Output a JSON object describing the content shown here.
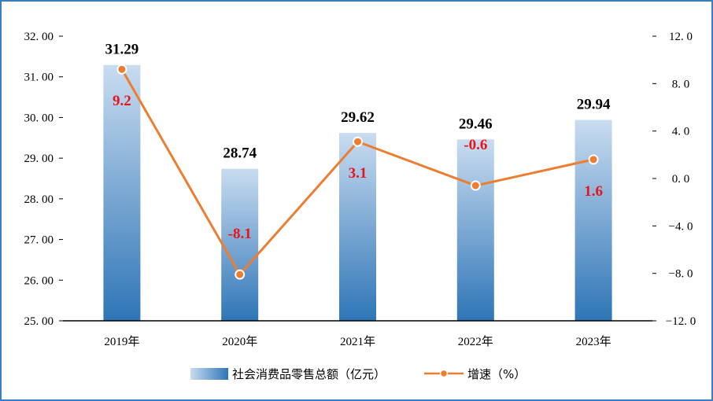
{
  "chart_data": {
    "type": "bar",
    "categories": [
      "2019年",
      "2020年",
      "2021年",
      "2022年",
      "2023年"
    ],
    "series": [
      {
        "name": "社会消费品零售总额（亿元）",
        "type": "bar",
        "axis": "left",
        "values": [
          31.29,
          28.74,
          29.62,
          29.46,
          29.94
        ],
        "labels": [
          "31.29",
          "28.74",
          "29.62",
          "29.46",
          "29.94"
        ],
        "color": "#2e75b6"
      },
      {
        "name": "增速（%）",
        "type": "line",
        "axis": "right",
        "values": [
          9.2,
          -8.1,
          3.1,
          -0.6,
          1.6
        ],
        "labels": [
          "9.2",
          "-8.1",
          "3.1",
          "-0.6",
          "1.6"
        ],
        "color": "#ed7d31"
      }
    ],
    "y_left": {
      "ylim": [
        25,
        32
      ],
      "ticks": [
        "25. 00",
        "26. 00",
        "27. 00",
        "28. 00",
        "29. 00",
        "30. 00",
        "31. 00",
        "32. 00"
      ]
    },
    "y_right": {
      "ylim": [
        -12,
        12
      ],
      "ticks": [
        "−12. 0",
        "−8. 0",
        "−4. 0",
        "0. 0",
        "4. 0",
        "8. 0",
        "12. 0"
      ]
    },
    "grid": false,
    "legend_position": "bottom"
  },
  "colors": {
    "bar_light": "#c9dcf0",
    "bar_dark": "#2e75b6",
    "line": "#ed7d31",
    "rate_label": "#e8141b",
    "frame": "#3a7fc1"
  }
}
